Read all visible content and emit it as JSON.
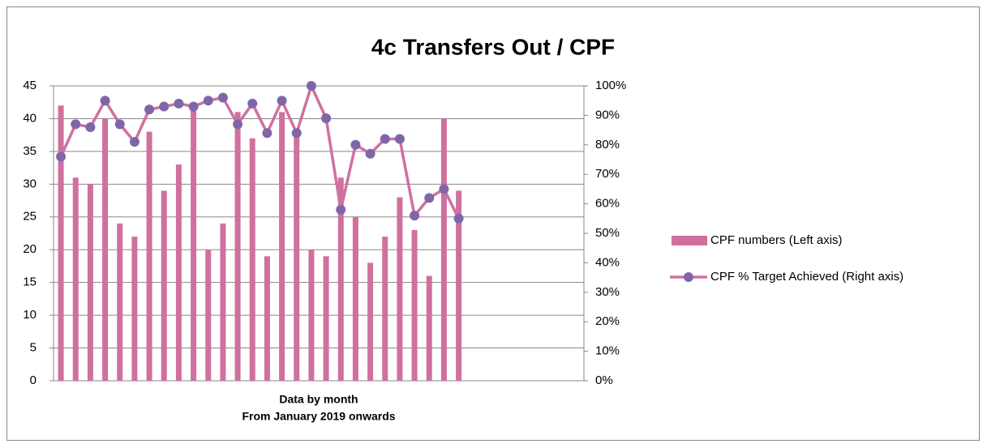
{
  "chart_data": {
    "type": "bar_line",
    "title": "4c Transfers Out / CPF",
    "x_label": "Data by month",
    "x_sublabel": "From January 2019 onwards",
    "categories": [
      null,
      null,
      null,
      null,
      null,
      null,
      null,
      null,
      null,
      null,
      null,
      null,
      null,
      null,
      null,
      null,
      null,
      null,
      null,
      null,
      null,
      null,
      null,
      null,
      null,
      null,
      null,
      null,
      null,
      null,
      null,
      null,
      null,
      null,
      null,
      null
    ],
    "series": [
      {
        "name": "CPF numbers (Left axis)",
        "type": "bar",
        "color": "#d0709f",
        "values": [
          42,
          31,
          30,
          40,
          24,
          22,
          38,
          29,
          33,
          42,
          20,
          24,
          41,
          37,
          19,
          41,
          38,
          20,
          19,
          31,
          25,
          18,
          22,
          28,
          23,
          16,
          40,
          29,
          null,
          null,
          null,
          null,
          null,
          null,
          null,
          null
        ]
      },
      {
        "name": "CPF % Target Achieved (Right axis)",
        "type": "line",
        "axis": "y2",
        "color": "#d070a0",
        "marker_color": "#7f66a8",
        "values": [
          76,
          87,
          86,
          95,
          87,
          81,
          92,
          93,
          94,
          93,
          95,
          96,
          87,
          94,
          84,
          95,
          84,
          100,
          89,
          58,
          80,
          77,
          82,
          82,
          56,
          62,
          65,
          55,
          null,
          null,
          null,
          null,
          null,
          null,
          null,
          null
        ]
      }
    ],
    "ylim": [
      0,
      45
    ],
    "yticks": [
      0,
      5,
      10,
      15,
      20,
      25,
      30,
      35,
      40,
      45
    ],
    "y2lim": [
      0,
      100
    ],
    "y2ticks": [
      {
        "value": 0,
        "label": "0%"
      },
      {
        "value": 10,
        "label": "10%"
      },
      {
        "value": 20,
        "label": "20%"
      },
      {
        "value": 30,
        "label": "30%"
      },
      {
        "value": 40,
        "label": "40%"
      },
      {
        "value": 50,
        "label": "50%"
      },
      {
        "value": 60,
        "label": "60%"
      },
      {
        "value": 70,
        "label": "70%"
      },
      {
        "value": 80,
        "label": "80%"
      },
      {
        "value": 90,
        "label": "90%"
      },
      {
        "value": 100,
        "label": "100%"
      }
    ],
    "grid": true,
    "legend": "right"
  }
}
